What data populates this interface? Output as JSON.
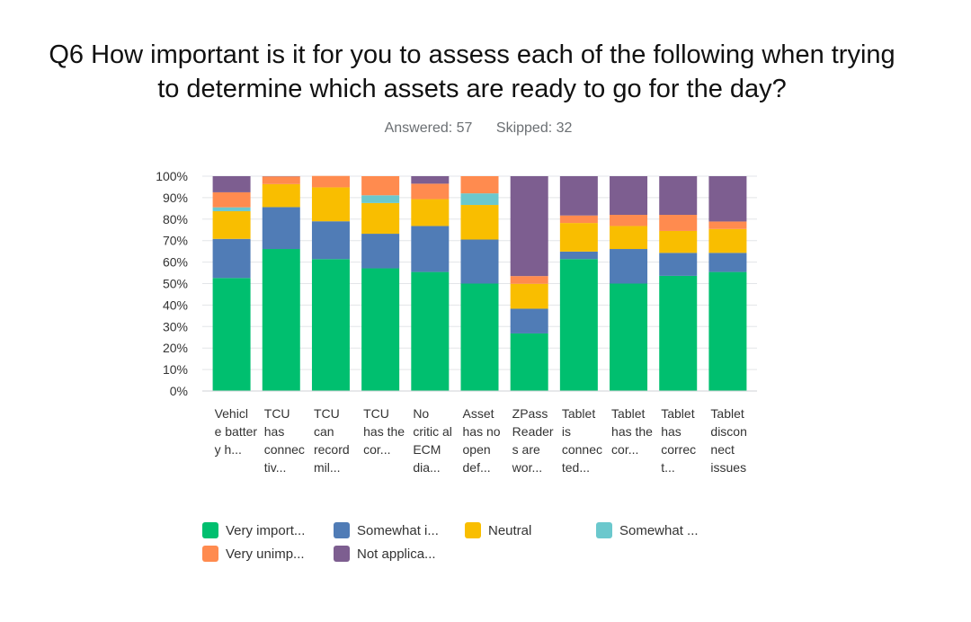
{
  "chart_data": {
    "type": "bar",
    "stacked": true,
    "title_line1": "Q6 How important is it for you to assess each of the following when trying",
    "title_line2": "to determine which assets are ready to go for the day?",
    "answered_label": "Answered: 57",
    "skipped_label": "Skipped: 32",
    "ylim": [
      0,
      100
    ],
    "y_ticks": [
      "0%",
      "10%",
      "20%",
      "30%",
      "40%",
      "50%",
      "60%",
      "70%",
      "80%",
      "90%",
      "100%"
    ],
    "categories": [
      "Vehicl e batter y h...",
      "TCU has connec tiv...",
      "TCU can record mil...",
      "TCU has the cor...",
      "No critic al ECM dia...",
      "Asset has no open def...",
      "ZPass Reader s are wor...",
      "Tablet is connec ted...",
      "Tablet has the cor...",
      "Tablet has correc t...",
      "Tablet discon nect issues"
    ],
    "series": [
      {
        "name": "Very import...",
        "color": "#00bf6f",
        "values": [
          52.6,
          66.1,
          61.4,
          57.1,
          55.4,
          50.0,
          26.8,
          61.4,
          50.0,
          53.6,
          55.4
        ]
      },
      {
        "name": "Somewhat i...",
        "color": "#507cb6",
        "values": [
          18.2,
          19.5,
          17.6,
          16.1,
          21.4,
          20.5,
          11.5,
          3.5,
          16.1,
          10.7,
          8.9
        ]
      },
      {
        "name": "Neutral",
        "color": "#f9be00",
        "values": [
          12.9,
          10.7,
          15.8,
          14.3,
          12.5,
          16.1,
          11.6,
          13.3,
          10.7,
          10.2,
          11.1
        ]
      },
      {
        "name": "Somewhat ...",
        "color": "#6bc8cd",
        "values": [
          1.8,
          0,
          0,
          3.6,
          0,
          5.4,
          0,
          0,
          0,
          0,
          0
        ]
      },
      {
        "name": "Very unimp...",
        "color": "#ff8b4f",
        "values": [
          7.0,
          3.6,
          5.3,
          8.9,
          7.2,
          8.0,
          3.6,
          3.5,
          5.2,
          7.5,
          3.5
        ]
      },
      {
        "name": "Not applica...",
        "color": "#7d5e90",
        "values": [
          7.5,
          0.1,
          0,
          0,
          3.5,
          0,
          46.5,
          18.3,
          18.0,
          18.0,
          21.1
        ]
      }
    ]
  }
}
